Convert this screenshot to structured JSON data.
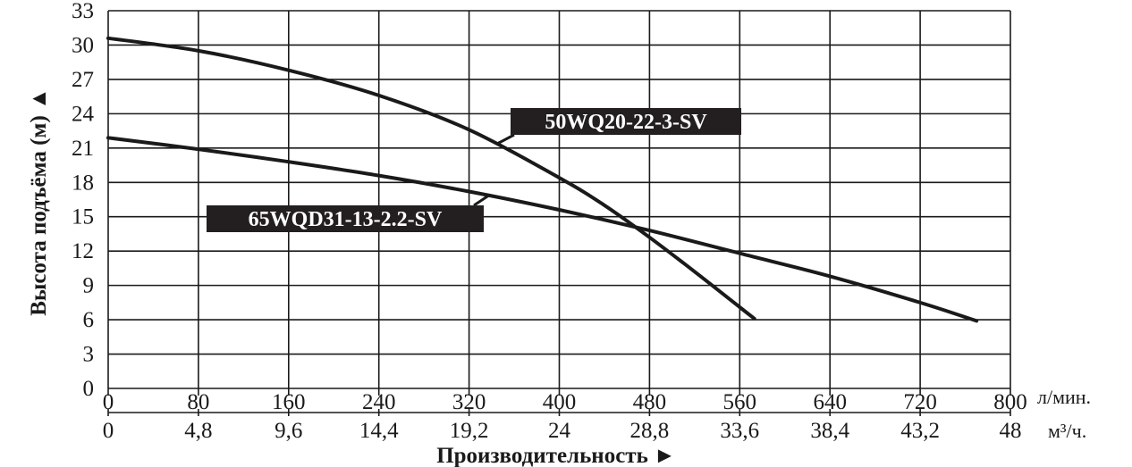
{
  "chart_data": {
    "type": "line",
    "ylabel": "Высота подъёма (м) ▲",
    "xlabel": "Производительность ►",
    "x_units": [
      "л/мин.",
      "м³/ч."
    ],
    "x_ticks_primary": [
      "0",
      "80",
      "160",
      "240",
      "320",
      "400",
      "480",
      "560",
      "640",
      "720",
      "800"
    ],
    "x_ticks_secondary": [
      "0",
      "4,8",
      "9,6",
      "14,4",
      "19,2",
      "24",
      "28,8",
      "33,6",
      "38,4",
      "43,2",
      "48"
    ],
    "y_ticks": [
      "0",
      "3",
      "6",
      "9",
      "12",
      "15",
      "18",
      "21",
      "24",
      "27",
      "30",
      "33"
    ],
    "xlim": [
      0,
      800
    ],
    "ylim": [
      0,
      33
    ],
    "grid": true,
    "series": [
      {
        "name": "50WQ20-22-3-SV",
        "x": [
          0,
          80,
          160,
          240,
          320,
          400,
          440,
          480,
          520,
          560,
          573
        ],
        "y": [
          30.6,
          29.5,
          27.8,
          25.6,
          22.6,
          18.4,
          16.0,
          13.2,
          10.2,
          7.1,
          6.1
        ]
      },
      {
        "name": "65WQD31-13-2.2-SV",
        "x": [
          0,
          80,
          160,
          240,
          320,
          400,
          480,
          560,
          640,
          720,
          770
        ],
        "y": [
          21.9,
          20.9,
          19.8,
          18.6,
          17.2,
          15.6,
          13.8,
          11.8,
          9.8,
          7.5,
          5.9
        ]
      }
    ]
  }
}
